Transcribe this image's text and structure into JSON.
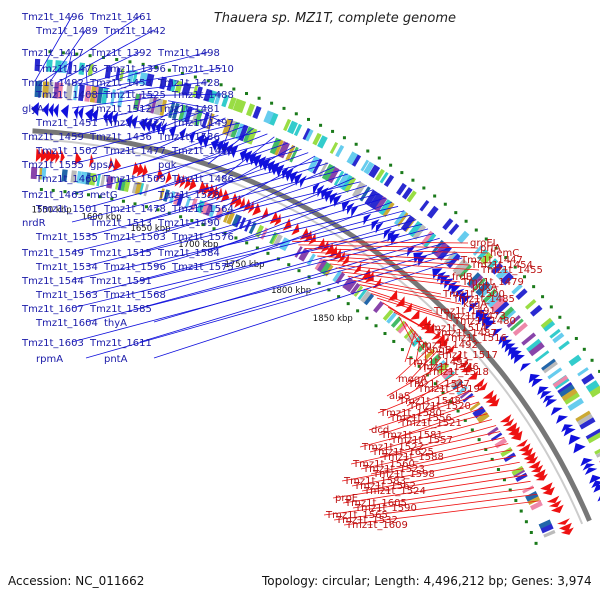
{
  "title": "Thauera sp. MZ1T, complete genome",
  "footer": {
    "accession": "Accession: NC_011662",
    "summary": "Topology: circular; Length: 4,496,212 bp; Genes: 3,974"
  },
  "colors": {
    "forward": "#1010dd",
    "reverse": "#ee1111",
    "backbone": "#777777",
    "tick": "#1a7a1a"
  },
  "kbp_ticks": [
    "1550 kbp",
    "1600 kbp",
    "1650 kbp",
    "1700 kbp",
    "1750 kbp",
    "1800 kbp",
    "1850 kbp"
  ],
  "forward_labels": [
    "Tmz1t_1496",
    "Tmz1t_1461",
    "Tmz1t_1489",
    "Tmz1t_1442",
    "Tmz1t_1417",
    "Tmz1t_1392",
    "Tmz1t_1498",
    "Tmz1t_1476",
    "Tmz1t_1396",
    "Tmz1t_1510",
    "Tmz1t_1482",
    "Tmz1t_1453",
    "Tmz1t_1428",
    "Tmz1t_1408",
    "Tmz1t_1525",
    "Tmz1t_1488",
    "glyA",
    "Tmz1t_1512",
    "Tmz1t_1481",
    "Tmz1t_1451",
    "Tmz1t_1427",
    "Tmz1t_1497",
    "Tmz1t_1459",
    "Tmz1t_1436",
    "Tmz1t_1536",
    "Tmz1t_1502",
    "Tmz1t_1477",
    "Tmz1t_1450",
    "Tmz1t_1555",
    "gpsA",
    "pgk",
    "Tmz1t_1460",
    "Tmz1t_1509",
    "Tmz1t_1486",
    "Tmz1t_1463",
    "metG",
    "Tmz1t_1528",
    "Tmz1t_1501",
    "Tmz1t_1478",
    "Tmz1t_1564",
    "nrdR",
    "Tmz1t_1513",
    "Tmz1t_1490",
    "Tmz1t_1535",
    "Tmz1t_1503",
    "Tmz1t_1576",
    "Tmz1t_1549",
    "Tmz1t_1515",
    "Tmz1t_1584",
    "Tmz1t_1534",
    "Tmz1t_1596",
    "Tmz1t_1575",
    "Tmz1t_1544",
    "Tmz1t_1591",
    "Tmz1t_1563",
    "Tmz1t_1568",
    "Tmz1t_1607",
    "Tmz1t_1585",
    "Tmz1t_1604",
    "thyA",
    "Tmz1t_1603",
    "Tmz1t_1611",
    "rpmA",
    "pntA"
  ],
  "reverse_labels": [
    "groEL",
    "prfA",
    "hemC",
    "Tmz1t_1447",
    "Tmz1t_1454",
    "Tmz1t_1455",
    "frdB",
    "Tmz1t_1479",
    "pdxA",
    "Tmz1t_1500",
    "Tmz1t_1485",
    "ksgA",
    "Tmz1t_1491",
    "Tmz1t_1473",
    "Tmz1t_1480",
    "Tmz1t_1514",
    "Tmz1t_1487",
    "Tmz1t_1516",
    "Tmz1t_1492",
    "engB",
    "Tmz1t_1517",
    "Tmz1t_1493",
    "Tmz1t_1546",
    "Tmz1t_1518",
    "mogA",
    "Tmz1t_1547",
    "Tmz1t_1519",
    "alaS",
    "Tmz1t_1548",
    "Tmz1t_1520",
    "Tmz1t_1580",
    "Tmz1t_1556",
    "Tmz1t_1521",
    "dcd",
    "Tmz1t_1581",
    "Tmz1t_1557",
    "Tmz1t_1522",
    "Tmz1t_1625",
    "Tmz1t_1588",
    "Tmz1t_1560",
    "Tmz1t_1523",
    "Tmz1t_1598",
    "Tmz1t_1583",
    "Tmz1t_1562",
    "Tmz1t_1524",
    "prpE",
    "Tmz1t_1605",
    "Tmz1t_1590",
    "Tmz1t_1565",
    "Tmz1t_1532",
    "Tmz1t_1609"
  ]
}
